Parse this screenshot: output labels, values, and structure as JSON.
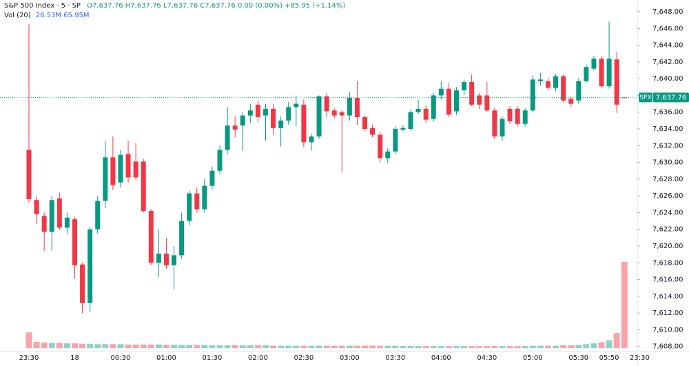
{
  "chart_data": {
    "type": "candlestick",
    "title": "S&P 500 Index · 5 · SP",
    "ohlc_text": "O7,637.76 H7,637.76 L7,637.76 C7,637.76 0.00 (0.00%) +85.95 (+1.14%)",
    "volume_label": "Vol (20)",
    "volume_text": "26.53M 65.95M",
    "symbol": "SPX",
    "last_price": {
      "value": 7637.76,
      "label": "7,637.76"
    },
    "up_color": "#089981",
    "down_color": "#f23645",
    "categories": [
      "23:30",
      null,
      null,
      null,
      null,
      null,
      "18",
      null,
      null,
      null,
      null,
      null,
      "00:30",
      null,
      null,
      null,
      null,
      null,
      "01:00",
      null,
      null,
      null,
      null,
      null,
      "01:30",
      null,
      null,
      null,
      null,
      null,
      "02:00",
      null,
      null,
      null,
      null,
      null,
      "02:30",
      null,
      null,
      null,
      null,
      null,
      "03:00",
      null,
      null,
      null,
      null,
      null,
      "03:30",
      null,
      null,
      null,
      null,
      null,
      "04:00",
      null,
      null,
      null,
      null,
      null,
      "04:30",
      null,
      null,
      null,
      null,
      null,
      "05:00",
      null,
      null,
      null,
      null,
      null,
      "05:30",
      null,
      null,
      null,
      "05:50",
      null,
      null,
      null,
      "23:30"
    ],
    "open": [
      7631.5,
      7625.5,
      7623.6,
      7621.7,
      7625.7,
      7622.2,
      7623.2,
      7617.8,
      7613.2,
      7622,
      7625.4,
      7630.6,
      7627.6,
      7631,
      7630.1,
      7630.1,
      7624.2,
      7618,
      7619.1,
      7617.7,
      7618.9,
      7623,
      7626.3,
      7624.4,
      7627.2,
      7629,
      7631.5,
      7634.4,
      7634.4,
      7635.6,
      7636.9,
      7635.6,
      7636.4,
      7634.1,
      7635,
      7636.6,
      7636.9,
      7632.4,
      7633.1,
      7637.9,
      7636.2,
      7636,
      7635.6,
      7637.7,
      7635.4,
      7634.1,
      7633.3,
      7630.5,
      7631.3,
      7633.9,
      7634,
      7636,
      7636.4,
      7635.2,
      7638,
      7638.8,
      7636.1,
      7638.6,
      7639.6,
      7638,
      7638,
      7636.2,
      7633.1,
      7636.4,
      7636.4,
      7634.6,
      7636.2,
      7639.7,
      7639.7,
      7638.9,
      7640.3,
      7637.6,
      7637.4,
      7639.7,
      7641.2,
      7642.4,
      7639.1,
      7642.3,
      7637.76,
      null,
      null
    ],
    "high": [
      7646.5,
      7626,
      7624,
      7626,
      7626.4,
      7624,
      7623.5,
      7618,
      7622.3,
      7626,
      7632.6,
      7633.1,
      7631.5,
      7632.6,
      7632.3,
      7630.4,
      7624.4,
      7622,
      7621,
      7620,
      7624,
      7626.6,
      7627,
      7628,
      7629.5,
      7632,
      7636.6,
      7635.5,
      7636,
      7637,
      7637.4,
      7637,
      7637,
      7635.5,
      7637.2,
      7638,
      7637.5,
      7633.4,
      7638,
      7638.3,
      7636.5,
      7636.3,
      7638.4,
      7639.7,
      7635.6,
      7634.5,
      7633.6,
      7631.7,
      7634.3,
      7634.4,
      7636.3,
      7637.5,
      7636.8,
      7638.3,
      7639.7,
      7639.5,
      7639,
      7639.9,
      7640.5,
      7638.3,
      7639.6,
      7636.5,
      7635.5,
      7636.7,
      7636.7,
      7636.5,
      7640.4,
      7640.7,
      7640.1,
      7640.6,
      7640.5,
      7637.9,
      7640,
      7641.7,
      7642.7,
      7642.7,
      7646.8,
      7643.2,
      7637.76,
      null,
      null
    ],
    "low": [
      7625.2,
      7622.6,
      7619.4,
      7619.5,
      7621.9,
      7621.5,
      7616.1,
      7612,
      7612.1,
      7621.5,
      7624.5,
      7626.7,
      7627,
      7627.6,
      7627.9,
      7624,
      7617.7,
      7616.3,
      7617.3,
      7614.8,
      7618.5,
      7622.5,
      7624,
      7624,
      7626.8,
      7628.6,
      7631,
      7633,
      7631.4,
      7634.7,
      7634.8,
      7632.6,
      7633.3,
      7631.9,
      7634.5,
      7634.3,
      7631.8,
      7631.4,
      7632.8,
      7635.4,
      7635.3,
      7628.8,
      7635,
      7634.5,
      7633.7,
      7633,
      7630,
      7629.9,
      7631,
      7633.7,
      7633.8,
      7635.8,
      7634.7,
      7634.9,
      7637.5,
      7635.4,
      7635.7,
      7638,
      7636.7,
      7636.4,
      7636,
      7632.8,
      7632.6,
      7634.6,
      7634.3,
      7634.3,
      7636,
      7639.2,
      7638.6,
      7638.5,
      7637.2,
      7636.6,
      7637,
      7639.5,
      7641,
      7638.9,
      7638.8,
      7635.9,
      7637.76,
      null,
      null
    ],
    "close": [
      7625.6,
      7623.8,
      7621.7,
      7625.5,
      7622.2,
      7623.4,
      7617.7,
      7613.2,
      7622,
      7625.4,
      7630.6,
      7627.3,
      7630.9,
      7628.2,
      7628.2,
      7624.2,
      7618,
      7619.1,
      7617.7,
      7618.9,
      7623,
      7626.3,
      7624.4,
      7627.2,
      7629,
      7631.5,
      7634.4,
      7633.9,
      7635.6,
      7636.2,
      7635.4,
      7636.4,
      7634.1,
      7635,
      7636.6,
      7637,
      7632.4,
      7633.1,
      7637.9,
      7636.1,
      7635.6,
      7635.6,
      7637.7,
      7635.4,
      7634,
      7633.3,
      7630.5,
      7631.3,
      7634,
      7634.1,
      7636,
      7636.4,
      7635.1,
      7638,
      7638.8,
      7635.7,
      7638.6,
      7639.6,
      7636.9,
      7636.9,
      7636.2,
      7633.1,
      7635.2,
      7634.9,
      7634.6,
      7636.2,
      7639.9,
      7639.9,
      7638.9,
      7640.3,
      7637.4,
      7637,
      7639.7,
      7641.4,
      7642.4,
      7639.1,
      7642.4,
      7636.9,
      7637.76,
      null,
      null
    ],
    "volume": [
      40,
      16,
      14,
      13,
      13,
      12,
      12,
      11,
      11,
      10,
      10,
      10,
      10,
      9,
      9,
      9,
      9,
      9,
      8,
      8,
      8,
      8,
      8,
      8,
      7,
      7,
      7,
      7,
      7,
      7,
      7,
      7,
      6,
      6,
      6,
      6,
      6,
      6,
      6,
      6,
      6,
      6,
      6,
      6,
      6,
      6,
      6,
      6,
      6,
      5,
      5,
      5,
      5,
      5,
      5,
      5,
      5,
      5,
      5,
      5,
      5,
      5,
      5,
      5,
      5,
      5,
      6,
      6,
      6,
      6,
      7,
      7,
      8,
      10,
      12,
      15,
      20,
      38,
      219,
      null,
      null
    ],
    "ylim": [
      7607.4,
      7649.4
    ],
    "yticks": [
      {
        "value": 7608,
        "label": "7,608.00"
      },
      {
        "value": 7610,
        "label": "7,610.00"
      },
      {
        "value": 7612,
        "label": "7,612.00"
      },
      {
        "value": 7614,
        "label": "7,614.00"
      },
      {
        "value": 7616,
        "label": "7,616.00"
      },
      {
        "value": 7618,
        "label": "7,618.00"
      },
      {
        "value": 7620,
        "label": "7,620.00"
      },
      {
        "value": 7622,
        "label": "7,622.00"
      },
      {
        "value": 7624,
        "label": "7,624.00"
      },
      {
        "value": 7626,
        "label": "7,626.00"
      },
      {
        "value": 7628,
        "label": "7,628.00"
      },
      {
        "value": 7630,
        "label": "7,630.00"
      },
      {
        "value": 7632,
        "label": "7,632.00"
      },
      {
        "value": 7634,
        "label": "7,634.00"
      },
      {
        "value": 7636,
        "label": "7,636.00"
      },
      {
        "value": 7638,
        "label": "7,638.00"
      },
      {
        "value": 7640,
        "label": "7,640.00"
      },
      {
        "value": 7642,
        "label": "7,642.00"
      },
      {
        "value": 7644,
        "label": "7,644.00"
      },
      {
        "value": 7646,
        "label": "7,646.00"
      },
      {
        "value": 7648,
        "label": "7,648.00"
      }
    ]
  }
}
